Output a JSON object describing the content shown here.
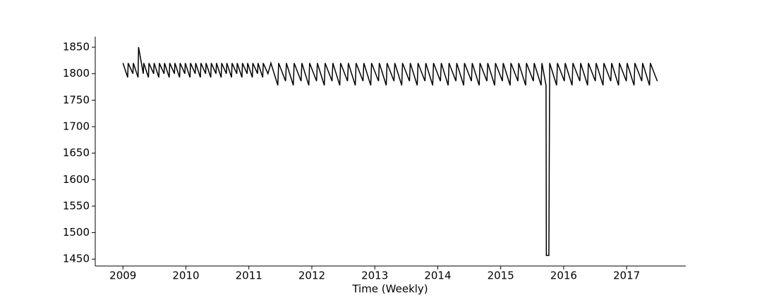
{
  "chart_data": {
    "type": "line",
    "xlabel": "Time (Weekly)",
    "color": "#000000",
    "x": [
      2009.0,
      2009.075,
      2009.083,
      2009.158,
      2009.165,
      2009.24,
      2009.248,
      2009.323,
      2009.33,
      2009.405,
      2009.413,
      2009.488,
      2009.495,
      2009.57,
      2009.578,
      2009.653,
      2009.66,
      2009.735,
      2009.743,
      2009.818,
      2009.825,
      2009.9,
      2009.908,
      2009.983,
      2009.99,
      2010.065,
      2010.073,
      2010.148,
      2010.155,
      2010.23,
      2010.238,
      2010.313,
      2010.32,
      2010.395,
      2010.403,
      2010.478,
      2010.485,
      2010.56,
      2010.568,
      2010.643,
      2010.65,
      2010.725,
      2010.733,
      2010.808,
      2010.815,
      2010.89,
      2010.898,
      2010.973,
      2010.98,
      2011.055,
      2011.063,
      2011.138,
      2011.145,
      2011.22,
      2011.228,
      2011.303,
      2011.35,
      2011.46,
      2011.473,
      2011.583,
      2011.596,
      2011.706,
      2011.719,
      2011.829,
      2011.842,
      2011.952,
      2011.965,
      2012.075,
      2012.088,
      2012.198,
      2012.211,
      2012.321,
      2012.334,
      2012.444,
      2012.457,
      2012.567,
      2012.58,
      2012.69,
      2012.703,
      2012.813,
      2012.826,
      2012.936,
      2012.949,
      2013.059,
      2013.072,
      2013.182,
      2013.195,
      2013.305,
      2013.318,
      2013.428,
      2013.441,
      2013.551,
      2013.564,
      2013.674,
      2013.687,
      2013.797,
      2013.81,
      2013.92,
      2013.933,
      2014.043,
      2014.056,
      2014.166,
      2014.179,
      2014.289,
      2014.302,
      2014.412,
      2014.425,
      2014.535,
      2014.548,
      2014.658,
      2014.671,
      2014.781,
      2014.794,
      2014.904,
      2014.917,
      2015.027,
      2015.04,
      2015.15,
      2015.163,
      2015.273,
      2015.286,
      2015.396,
      2015.409,
      2015.519,
      2015.532,
      2015.642,
      2015.655,
      2015.72,
      2015.725,
      2015.765,
      2015.778,
      2015.888,
      2015.901,
      2016.011,
      2016.024,
      2016.134,
      2016.147,
      2016.257,
      2016.27,
      2016.38,
      2016.393,
      2016.503,
      2016.516,
      2016.626,
      2016.639,
      2016.749,
      2016.762,
      2016.872,
      2016.885,
      2016.995,
      2017.008,
      2017.118,
      2017.131,
      2017.241,
      2017.254,
      2017.364,
      2017.377,
      2017.487
    ],
    "values": [
      1820,
      1793,
      1820,
      1800,
      1820,
      1793,
      1850,
      1800,
      1820,
      1793,
      1820,
      1800,
      1820,
      1793,
      1820,
      1800,
      1820,
      1793,
      1820,
      1800,
      1820,
      1793,
      1820,
      1800,
      1820,
      1793,
      1820,
      1800,
      1820,
      1793,
      1820,
      1800,
      1820,
      1793,
      1820,
      1800,
      1820,
      1793,
      1820,
      1800,
      1820,
      1793,
      1820,
      1800,
      1820,
      1793,
      1820,
      1800,
      1820,
      1793,
      1820,
      1800,
      1820,
      1793,
      1820,
      1800,
      1820,
      1778,
      1820,
      1786,
      1820,
      1778,
      1820,
      1786,
      1820,
      1778,
      1820,
      1786,
      1820,
      1778,
      1820,
      1786,
      1820,
      1778,
      1820,
      1786,
      1820,
      1778,
      1820,
      1786,
      1820,
      1778,
      1820,
      1786,
      1820,
      1778,
      1820,
      1786,
      1820,
      1778,
      1820,
      1786,
      1820,
      1778,
      1820,
      1786,
      1820,
      1778,
      1820,
      1786,
      1820,
      1778,
      1820,
      1786,
      1820,
      1778,
      1820,
      1786,
      1820,
      1778,
      1820,
      1786,
      1820,
      1778,
      1820,
      1786,
      1820,
      1778,
      1820,
      1786,
      1820,
      1778,
      1820,
      1786,
      1820,
      1778,
      1820,
      1778,
      1457,
      1457,
      1820,
      1778,
      1820,
      1786,
      1820,
      1778,
      1820,
      1786,
      1820,
      1778,
      1820,
      1786,
      1820,
      1778,
      1820,
      1786,
      1820,
      1778,
      1820,
      1786,
      1820,
      1778,
      1820,
      1786,
      1820,
      1778,
      1820,
      1786
    ],
    "xlim": [
      2008.56,
      2017.94
    ],
    "ylim": [
      1437,
      1870
    ],
    "xticks": [
      2009,
      2010,
      2011,
      2012,
      2013,
      2014,
      2015,
      2016,
      2017
    ],
    "yticks": [
      1450,
      1500,
      1550,
      1600,
      1650,
      1700,
      1750,
      1800,
      1850
    ]
  }
}
